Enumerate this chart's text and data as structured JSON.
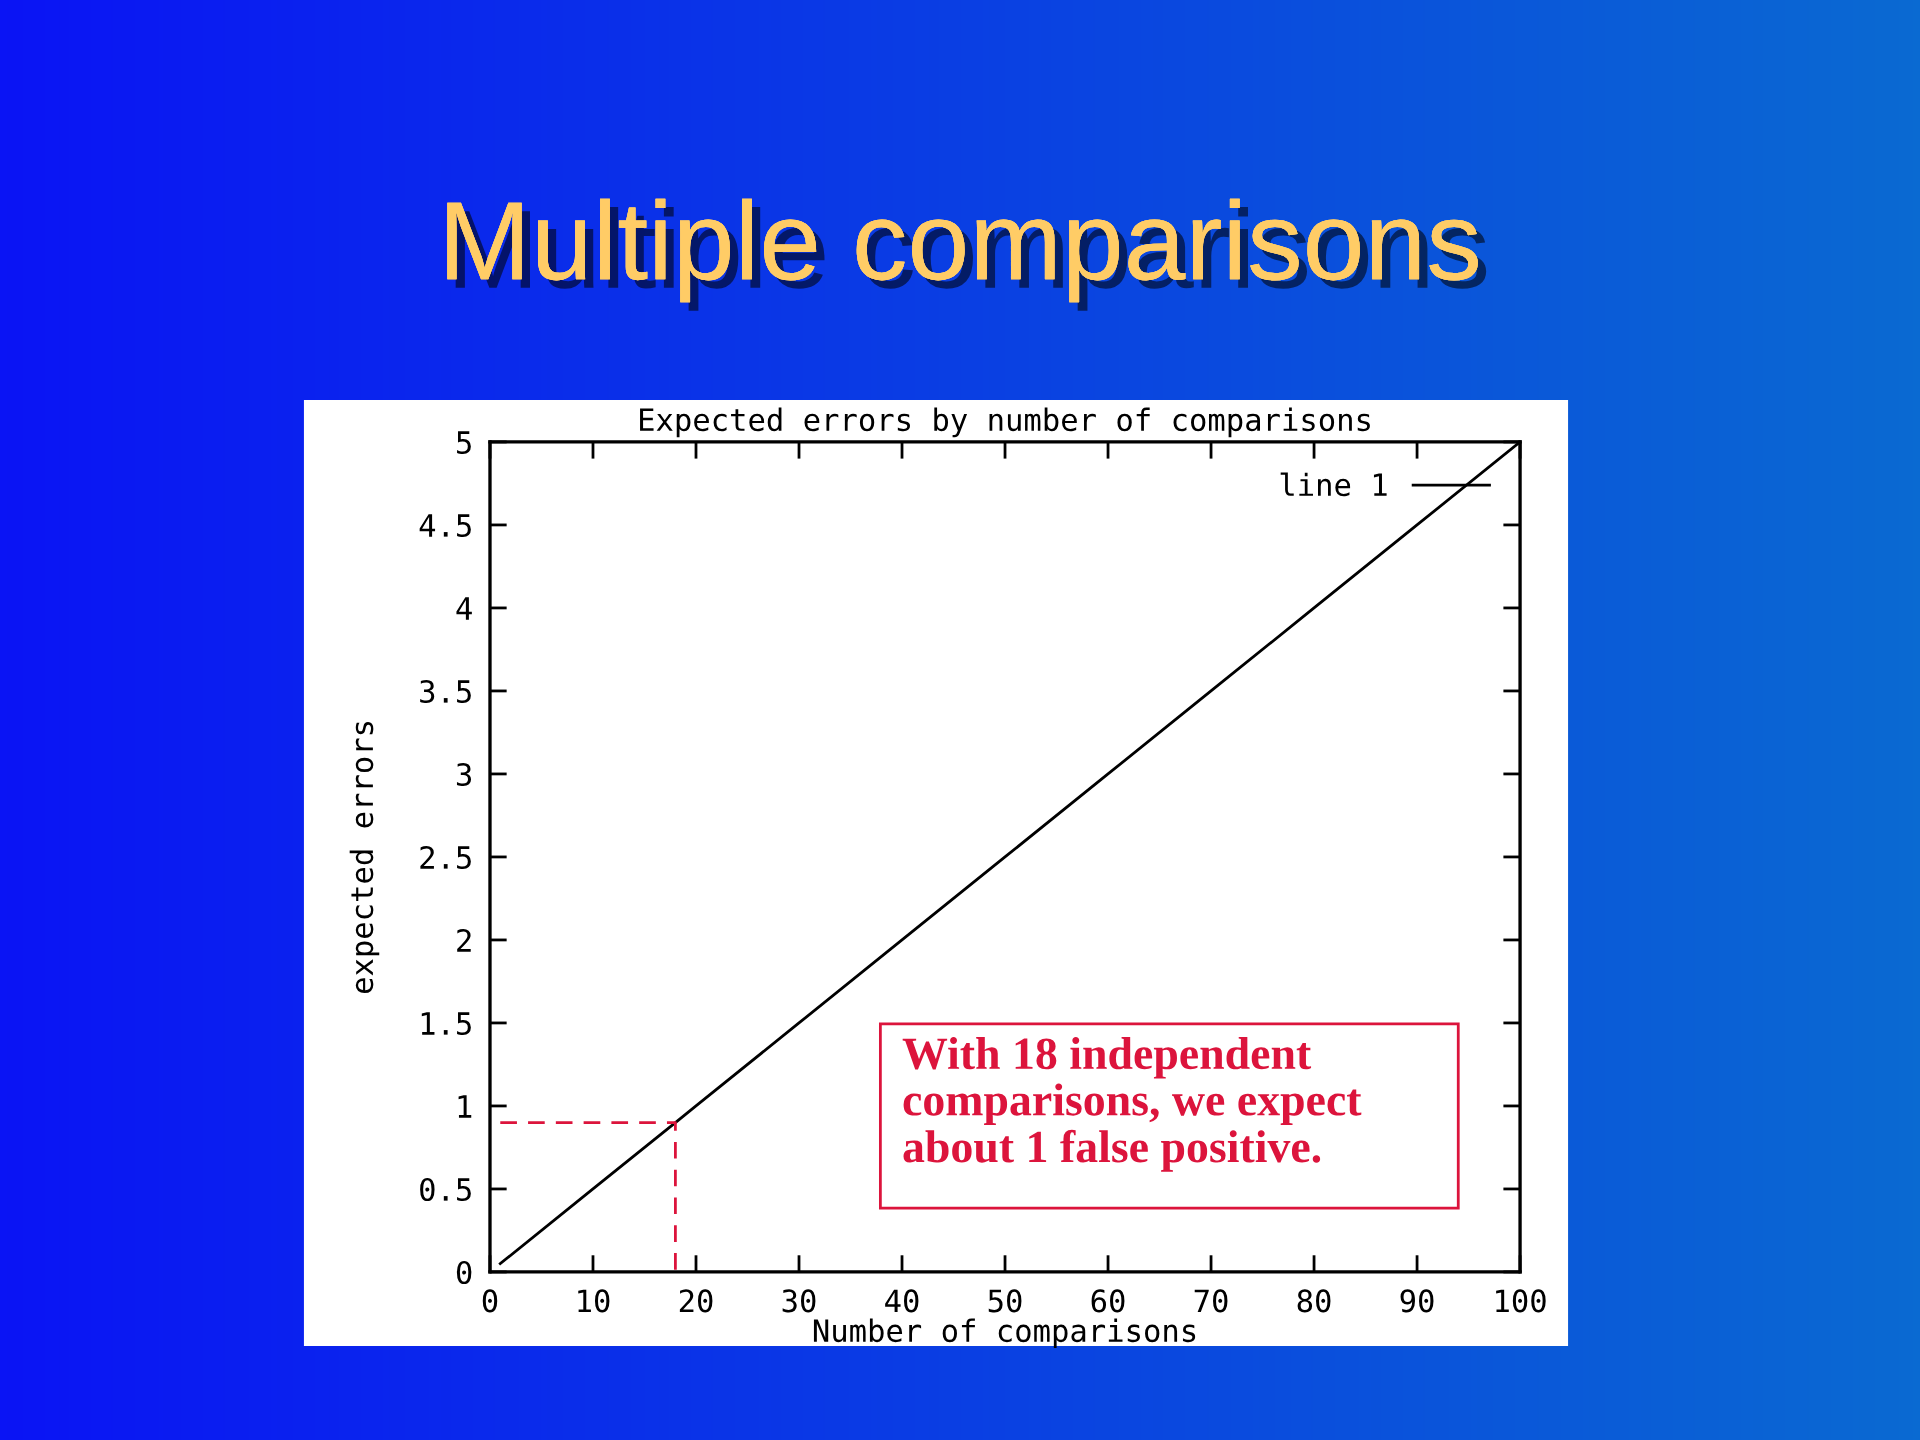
{
  "chart_data": {
    "type": "line",
    "title": "Multiple comparisons",
    "subtitle": "Expected errors by number of comparisons",
    "xlabel": "Number of comparisons",
    "ylabel": "expected errors",
    "series": [
      {
        "name": "line 1",
        "color": "#000000",
        "x": [
          1,
          10,
          18,
          20,
          30,
          40,
          50,
          60,
          70,
          80,
          90,
          100
        ],
        "values": [
          0.05,
          0.5,
          0.9,
          1,
          1.5,
          2,
          2.5,
          3,
          3.5,
          4,
          4.5,
          5
        ]
      },
      {
        "color": "#dc143c",
        "line_style": "dashed",
        "x": [
          1,
          18,
          18
        ],
        "values": [
          0.9,
          0.9,
          0
        ]
      }
    ],
    "xlim": [
      0,
      100
    ],
    "ylim": [
      0,
      5
    ],
    "xticks": [
      0,
      10,
      20,
      30,
      40,
      50,
      60,
      70,
      80,
      90,
      100
    ],
    "yticks": [
      0,
      0.5,
      1,
      1.5,
      2,
      2.5,
      3,
      3.5,
      4,
      4.5,
      5
    ],
    "grid": false,
    "legend": "top right",
    "annotations": [
      "With 18 independent\ncomparisons, we expect\nabout 1 false positive."
    ]
  }
}
